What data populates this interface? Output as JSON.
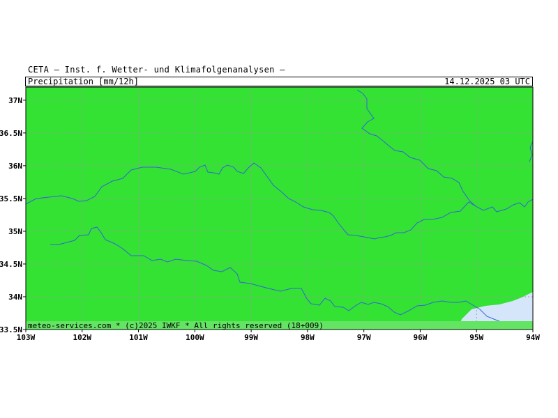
{
  "header": {
    "title": "CETA — Inst. f. Wetter- und Klimafolgenanalysen —",
    "parameter": "Precipitation_[mm/12h]",
    "datetime": "14.12.2025 03 UTC"
  },
  "footer": {
    "copyright": "meteo-services.com * (c)2025 IWKF * All rights reserved (18+009)"
  },
  "map": {
    "lon_min": -103,
    "lon_max": -94,
    "lat_min": 33.5,
    "lat_max": 37.2,
    "lon_ticks": [
      {
        "value": -103,
        "label": "103W"
      },
      {
        "value": -102,
        "label": "102W"
      },
      {
        "value": -101,
        "label": "101W"
      },
      {
        "value": -100,
        "label": "100W"
      },
      {
        "value": -99,
        "label": "99W"
      },
      {
        "value": -98,
        "label": "98W"
      },
      {
        "value": -97,
        "label": "97W"
      },
      {
        "value": -96,
        "label": "96W"
      },
      {
        "value": -95,
        "label": "95W"
      },
      {
        "value": -94,
        "label": "94W"
      }
    ],
    "lat_ticks": [
      {
        "value": 37,
        "label": "37N"
      },
      {
        "value": 36.5,
        "label": "36.5N"
      },
      {
        "value": 36,
        "label": "36N"
      },
      {
        "value": 35.5,
        "label": "35.5N"
      },
      {
        "value": 35,
        "label": "35N"
      },
      {
        "value": 34.5,
        "label": "34.5N"
      },
      {
        "value": 34,
        "label": "34N"
      },
      {
        "value": 33.5,
        "label": "33.5N"
      }
    ],
    "colors": {
      "precip_fill": "#33e233",
      "no_precip_fill": "#d6e6fa",
      "rivers": "#3464d8",
      "grid": "#9a9a9a",
      "frame": "#000000",
      "footer_band": "#63e463"
    }
  }
}
